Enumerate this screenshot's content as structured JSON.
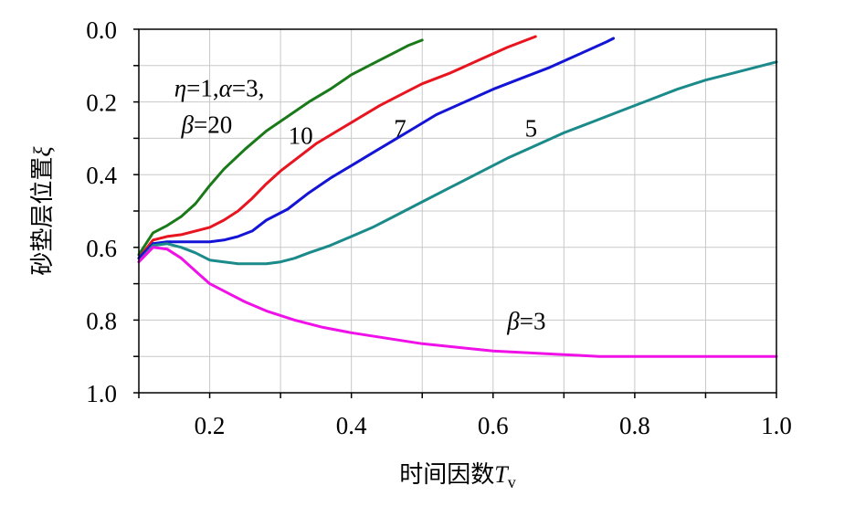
{
  "chart_data": {
    "type": "line",
    "title": "",
    "xlabel": {
      "text": "时间因数",
      "symbol": "T",
      "subscript": "v"
    },
    "ylabel": {
      "text": "砂垫层位置",
      "symbol": "ξ"
    },
    "xlim": [
      0.1,
      1.0
    ],
    "ylim": [
      0.0,
      1.0
    ],
    "y_inverted": true,
    "x_ticks": [
      "0.2",
      "0.4",
      "0.6",
      "0.8",
      "1.0"
    ],
    "y_ticks": [
      "0.0",
      "0.2",
      "0.4",
      "0.6",
      "0.8",
      "1.0"
    ],
    "grid": true,
    "annotations": [
      {
        "text": "η=1,α=3,",
        "x": 0.15,
        "y": 0.16
      },
      {
        "text": "β=20",
        "x": 0.16,
        "y": 0.26
      },
      {
        "text": "10",
        "x": 0.311,
        "y": 0.29
      },
      {
        "text": "7",
        "x": 0.46,
        "y": 0.27
      },
      {
        "text": "5",
        "x": 0.645,
        "y": 0.27
      },
      {
        "text": "β=3",
        "x": 0.62,
        "y": 0.8
      }
    ],
    "series": [
      {
        "color": "#1a7a1a",
        "x": [
          0.1,
          0.12,
          0.14,
          0.16,
          0.18,
          0.2,
          0.22,
          0.25,
          0.28,
          0.31,
          0.34,
          0.37,
          0.4,
          0.43,
          0.46,
          0.48,
          0.5
        ],
        "y": [
          0.62,
          0.56,
          0.54,
          0.515,
          0.48,
          0.43,
          0.385,
          0.33,
          0.28,
          0.24,
          0.2,
          0.165,
          0.125,
          0.095,
          0.065,
          0.045,
          0.03
        ]
      },
      {
        "color": "#e8141f",
        "x": [
          0.1,
          0.12,
          0.14,
          0.16,
          0.18,
          0.2,
          0.22,
          0.24,
          0.26,
          0.28,
          0.3,
          0.32,
          0.35,
          0.38,
          0.41,
          0.44,
          0.47,
          0.5,
          0.54,
          0.58,
          0.62,
          0.66
        ],
        "y": [
          0.63,
          0.58,
          0.57,
          0.565,
          0.555,
          0.545,
          0.525,
          0.5,
          0.465,
          0.425,
          0.39,
          0.36,
          0.315,
          0.28,
          0.245,
          0.21,
          0.18,
          0.15,
          0.12,
          0.085,
          0.05,
          0.02
        ]
      },
      {
        "color": "#1414d6",
        "x": [
          0.1,
          0.12,
          0.14,
          0.16,
          0.18,
          0.2,
          0.22,
          0.24,
          0.26,
          0.28,
          0.31,
          0.34,
          0.37,
          0.4,
          0.43,
          0.46,
          0.49,
          0.52,
          0.56,
          0.6,
          0.64,
          0.68,
          0.72,
          0.76,
          0.77
        ],
        "y": [
          0.63,
          0.59,
          0.585,
          0.585,
          0.585,
          0.585,
          0.58,
          0.57,
          0.555,
          0.525,
          0.495,
          0.45,
          0.41,
          0.375,
          0.34,
          0.305,
          0.27,
          0.235,
          0.2,
          0.165,
          0.135,
          0.105,
          0.07,
          0.035,
          0.025
        ]
      },
      {
        "color": "#1b8a8a",
        "x": [
          0.1,
          0.12,
          0.14,
          0.16,
          0.18,
          0.2,
          0.22,
          0.24,
          0.26,
          0.28,
          0.3,
          0.32,
          0.34,
          0.37,
          0.4,
          0.43,
          0.46,
          0.5,
          0.54,
          0.58,
          0.62,
          0.66,
          0.7,
          0.74,
          0.78,
          0.82,
          0.86,
          0.9,
          0.94,
          0.98,
          1.0
        ],
        "y": [
          0.64,
          0.595,
          0.59,
          0.6,
          0.615,
          0.635,
          0.64,
          0.645,
          0.645,
          0.645,
          0.64,
          0.63,
          0.615,
          0.595,
          0.57,
          0.545,
          0.515,
          0.475,
          0.435,
          0.395,
          0.355,
          0.32,
          0.285,
          0.255,
          0.225,
          0.195,
          0.165,
          0.14,
          0.12,
          0.1,
          0.09
        ]
      },
      {
        "color": "#f010e8",
        "x": [
          0.1,
          0.12,
          0.14,
          0.16,
          0.18,
          0.2,
          0.22,
          0.25,
          0.28,
          0.32,
          0.36,
          0.4,
          0.45,
          0.5,
          0.55,
          0.6,
          0.65,
          0.7,
          0.75,
          0.8,
          0.85,
          0.9,
          0.95,
          1.0
        ],
        "y": [
          0.64,
          0.6,
          0.605,
          0.63,
          0.665,
          0.7,
          0.72,
          0.75,
          0.775,
          0.8,
          0.82,
          0.835,
          0.85,
          0.865,
          0.875,
          0.885,
          0.89,
          0.895,
          0.9,
          0.9,
          0.9,
          0.9,
          0.9,
          0.9
        ]
      }
    ]
  }
}
